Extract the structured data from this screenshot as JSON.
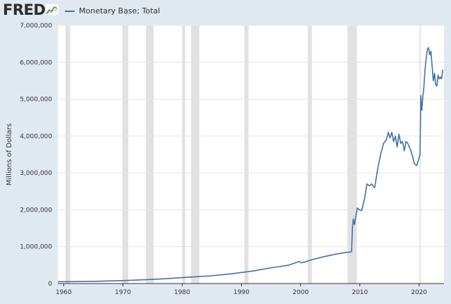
{
  "header": {
    "logo_text": "FRED",
    "logo_icon": "fred-graph-icon"
  },
  "colors": {
    "background": "#e1e9f0",
    "plot_background": "#ffffff",
    "series": "#4572a7",
    "recession": "#e1e1e1",
    "grid": "#e6e6e6"
  },
  "chart_data": {
    "type": "line",
    "title": "",
    "xlabel": "",
    "ylabel": "Millions of Dollars",
    "xlim": [
      1959,
      2024.2
    ],
    "ylim": [
      0,
      7000000
    ],
    "grid": true,
    "legend_position": "top-left",
    "x_ticks": [
      1960,
      1970,
      1980,
      1990,
      2000,
      2010,
      2020
    ],
    "y_ticks": [
      0,
      1000000,
      2000000,
      3000000,
      4000000,
      5000000,
      6000000,
      7000000
    ],
    "y_tick_labels": [
      "0",
      "1,000,000",
      "2,000,000",
      "3,000,000",
      "4,000,000",
      "5,000,000",
      "6,000,000",
      "7,000,000"
    ],
    "recessions": [
      [
        1960.3,
        1961.1
      ],
      [
        1969.9,
        1970.9
      ],
      [
        1973.9,
        1975.2
      ],
      [
        1980.0,
        1980.5
      ],
      [
        1981.5,
        1982.9
      ],
      [
        1990.5,
        1991.2
      ],
      [
        2001.2,
        2001.9
      ],
      [
        2007.9,
        2009.5
      ],
      [
        2020.1,
        2020.3
      ]
    ],
    "series": [
      {
        "name": "Monetary Base; Total",
        "x": [
          1959,
          1962,
          1965,
          1968,
          1970,
          1973,
          1976,
          1979,
          1980,
          1982,
          1985,
          1988,
          1990,
          1992,
          1994,
          1996,
          1998,
          1999.8,
          2000.1,
          2000.6,
          2002,
          2004,
          2006,
          2008.0,
          2008.6,
          2008.75,
          2008.9,
          2009.1,
          2009.4,
          2009.6,
          2009.9,
          2010.3,
          2010.8,
          2011.2,
          2011.6,
          2012.0,
          2012.5,
          2013.0,
          2013.5,
          2014.0,
          2014.5,
          2014.8,
          2015.1,
          2015.4,
          2015.7,
          2016.0,
          2016.3,
          2016.6,
          2016.9,
          2017.2,
          2017.5,
          2017.8,
          2018.1,
          2018.5,
          2018.9,
          2019.2,
          2019.6,
          2019.8,
          2020.0,
          2020.15,
          2020.3,
          2020.45,
          2020.6,
          2020.8,
          2021.0,
          2021.2,
          2021.4,
          2021.6,
          2021.8,
          2022.0,
          2022.2,
          2022.4,
          2022.6,
          2022.8,
          2023.0,
          2023.2,
          2023.4,
          2023.6,
          2023.8,
          2024.0
        ],
        "y": [
          50000,
          53000,
          60000,
          72000,
          80000,
          100000,
          120000,
          150000,
          160000,
          180000,
          210000,
          260000,
          300000,
          340000,
          400000,
          450000,
          500000,
          600000,
          560000,
          580000,
          650000,
          730000,
          800000,
          850000,
          860000,
          1500000,
          1750000,
          1600000,
          1900000,
          2050000,
          2000000,
          1980000,
          2300000,
          2700000,
          2650000,
          2700000,
          2600000,
          3100000,
          3500000,
          3800000,
          3900000,
          4100000,
          3950000,
          4100000,
          3850000,
          4000000,
          3700000,
          4050000,
          3800000,
          3850000,
          3600000,
          3850000,
          3800000,
          3650000,
          3450000,
          3250000,
          3200000,
          3300000,
          3400000,
          3500000,
          5100000,
          4700000,
          5000000,
          5300000,
          5800000,
          6100000,
          6350000,
          6400000,
          6200000,
          6300000,
          5900000,
          5500000,
          5700000,
          5400000,
          5350000,
          5650000,
          5550000,
          5600000,
          5550000,
          5800000
        ]
      }
    ]
  }
}
